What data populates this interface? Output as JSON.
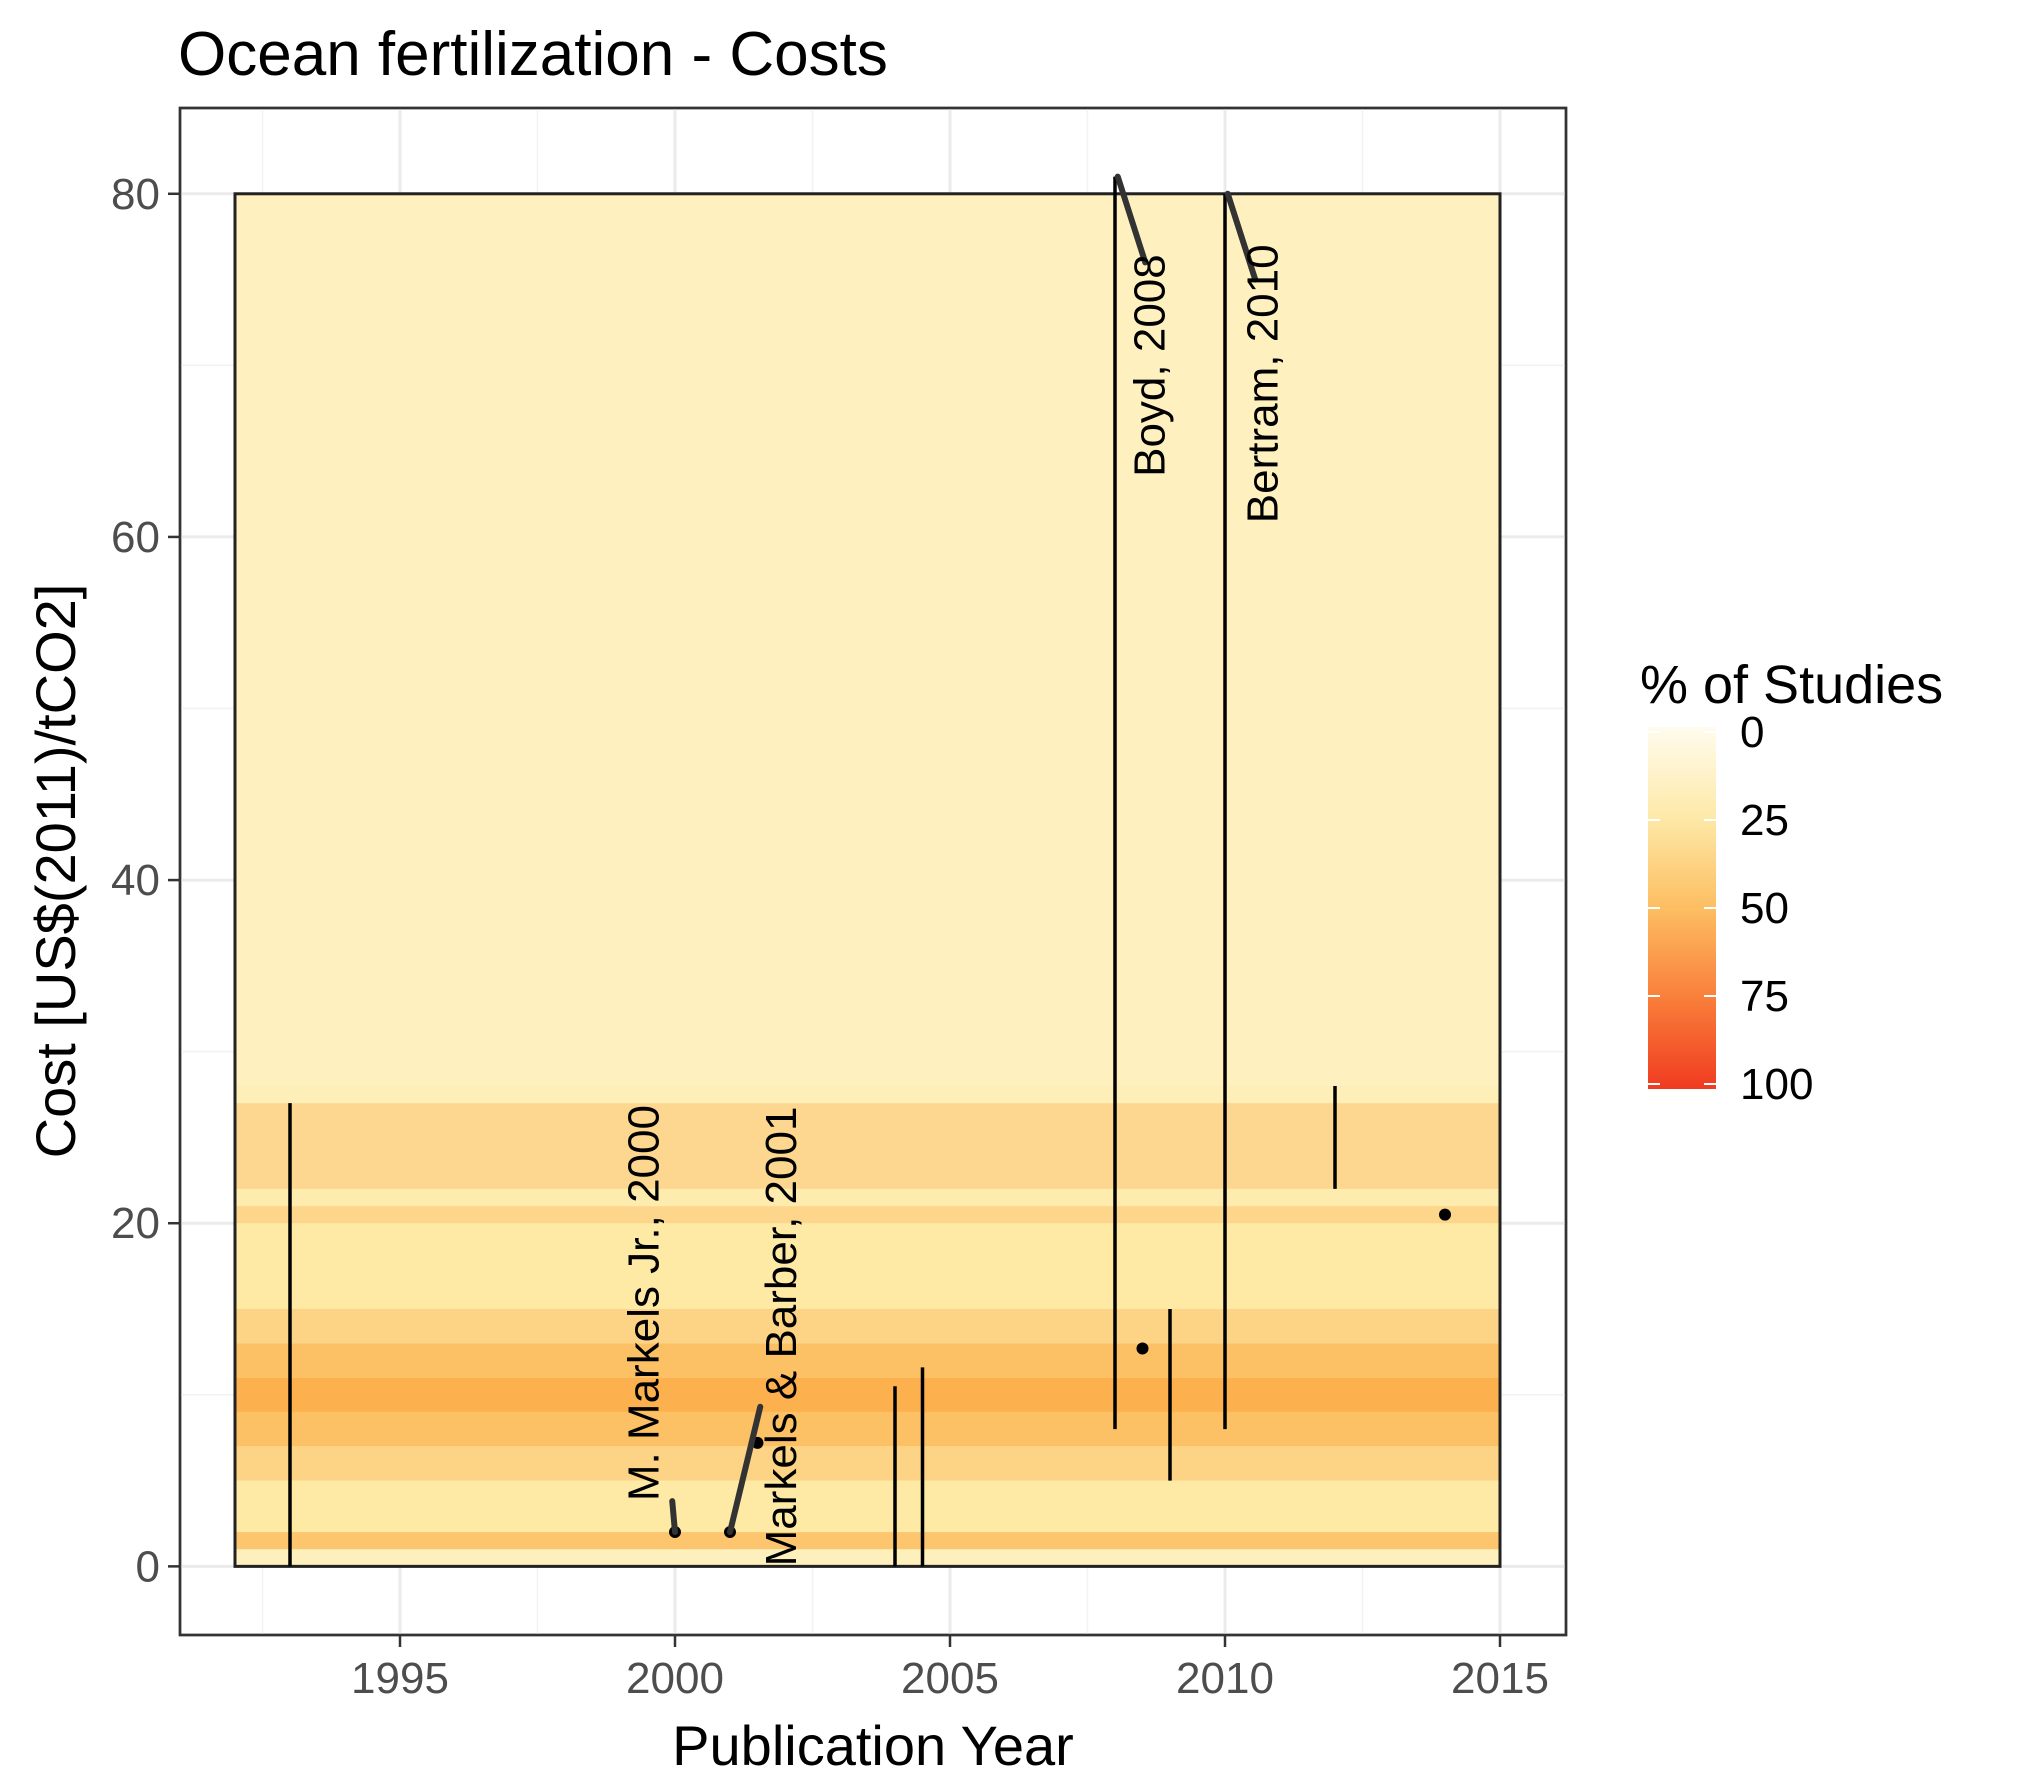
{
  "chart_data": {
    "type": "range",
    "title": "Ocean fertilization - Costs",
    "xlabel": "Publication Year",
    "ylabel": "Cost [US$(2011)/tCO2]",
    "xlim": [
      1991,
      2016.2
    ],
    "ylim": [
      -4,
      85
    ],
    "x_ticks": [
      1995,
      2000,
      2005,
      2010,
      2015
    ],
    "y_ticks": [
      0,
      20,
      40,
      60,
      80
    ],
    "grid": true,
    "legend": {
      "title": "% of Studies",
      "placement": "right",
      "ticks": [
        0,
        25,
        50,
        75,
        100
      ],
      "colors": [
        "#fffcee",
        "#fde9a8",
        "#fdbe62",
        "#f97e3a",
        "#f03b20"
      ]
    },
    "background_band": {
      "x_range": [
        1992,
        2015
      ],
      "y_range": [
        0,
        80
      ],
      "base_color": "#fef1bf"
    },
    "density_bands": [
      {
        "y0": 0,
        "y1": 1,
        "color": "#fef0bc"
      },
      {
        "y0": 1,
        "y1": 2,
        "color": "#fdc66e"
      },
      {
        "y0": 2,
        "y1": 5,
        "color": "#feeaa5"
      },
      {
        "y0": 5,
        "y1": 7,
        "color": "#fdd385"
      },
      {
        "y0": 7,
        "y1": 9,
        "color": "#fdc165"
      },
      {
        "y0": 9,
        "y1": 11,
        "color": "#fdb14e"
      },
      {
        "y0": 11,
        "y1": 13,
        "color": "#fdc165"
      },
      {
        "y0": 13,
        "y1": 15,
        "color": "#fdd385"
      },
      {
        "y0": 15,
        "y1": 20,
        "color": "#feeaa5"
      },
      {
        "y0": 20,
        "y1": 21,
        "color": "#fdd68c"
      },
      {
        "y0": 21,
        "y1": 22,
        "color": "#feebae"
      },
      {
        "y0": 22,
        "y1": 27,
        "color": "#fdd78f"
      },
      {
        "y0": 27,
        "y1": 28,
        "color": "#feeeb8"
      }
    ],
    "ranges": [
      {
        "x": 1993,
        "low": 0,
        "high": 27
      },
      {
        "x": 2004,
        "low": 0,
        "high": 10.5
      },
      {
        "x": 2004.5,
        "low": 0,
        "high": 11.6
      },
      {
        "x": 2008,
        "low": 8,
        "high": 81
      },
      {
        "x": 2009,
        "low": 5,
        "high": 15
      },
      {
        "x": 2010,
        "low": 8,
        "high": 80
      },
      {
        "x": 2012,
        "low": 22,
        "high": 28
      }
    ],
    "points": [
      {
        "x": 2000,
        "y": 2
      },
      {
        "x": 2001,
        "y": 2
      },
      {
        "x": 2001.5,
        "y": 7.2
      },
      {
        "x": 2008.5,
        "y": 12.7
      },
      {
        "x": 2014,
        "y": 20.5
      }
    ],
    "annotations": [
      {
        "label": "M. Markels Jr., 2000",
        "x": 2000,
        "y": 2,
        "line_to": [
          1999.95,
          3.8
        ],
        "text_at": [
          1999.7,
          3.8
        ]
      },
      {
        "label": "Markels & Barber, 2001",
        "x": 2001,
        "y": 2,
        "line_to": [
          2001.55,
          9.3
        ],
        "text_at": [
          2002.2,
          0
        ]
      },
      {
        "label": "Boyd, 2008",
        "x": 2008.05,
        "y": 81,
        "line_to": [
          2008.55,
          76
        ],
        "text_at": [
          2008.9,
          63.5
        ]
      },
      {
        "label": "Bertram, 2010",
        "x": 2010.05,
        "y": 80,
        "line_to": [
          2010.55,
          75
        ],
        "text_at": [
          2010.95,
          60.8
        ]
      }
    ]
  }
}
